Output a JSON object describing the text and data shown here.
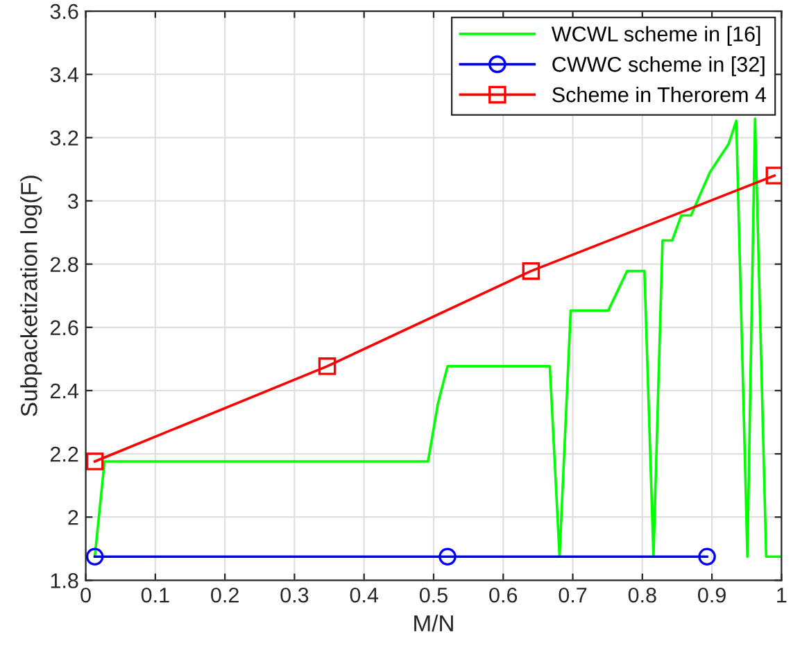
{
  "chart_data": {
    "type": "line",
    "xlabel": "M/N",
    "ylabel": "Subpacketization log(F)",
    "xlim": [
      0,
      1
    ],
    "ylim": [
      1.8,
      3.6
    ],
    "xticks": [
      0,
      0.1,
      0.2,
      0.3,
      0.4,
      0.5,
      0.6,
      0.7,
      0.8,
      0.9,
      1
    ],
    "yticks": [
      1.8,
      2,
      2.2,
      2.4,
      2.6,
      2.8,
      3,
      3.2,
      3.4,
      3.6
    ],
    "grid": true,
    "legend": "top right",
    "series": [
      {
        "name": "WCWL scheme in [16]",
        "color": "#00ff00",
        "marker": "none",
        "x": [
          0.013,
          0.027,
          0.492,
          0.506,
          0.52,
          0.667,
          0.681,
          0.697,
          0.751,
          0.778,
          0.803,
          0.816,
          0.829,
          0.843,
          0.856,
          0.87,
          0.897,
          0.924,
          0.935,
          0.951,
          0.962,
          0.978,
          1.0
        ],
        "values": [
          1.875,
          2.176,
          2.176,
          2.357,
          2.477,
          2.477,
          1.875,
          2.653,
          2.653,
          2.778,
          2.778,
          1.875,
          2.875,
          2.875,
          2.954,
          2.954,
          3.09,
          3.18,
          3.253,
          1.875,
          3.26,
          1.875,
          1.875
        ]
      },
      {
        "name": "CWWC scheme in [32]",
        "color": "#0000ff",
        "marker": "circle",
        "x": [
          0.013,
          0.52,
          0.893
        ],
        "values": [
          1.875,
          1.875,
          1.875
        ]
      },
      {
        "name": "Scheme in Therorem 4",
        "color": "#ff0000",
        "marker": "square",
        "x": [
          0.013,
          0.347,
          0.64,
          0.99
        ],
        "values": [
          2.176,
          2.477,
          2.778,
          3.08
        ]
      }
    ]
  }
}
